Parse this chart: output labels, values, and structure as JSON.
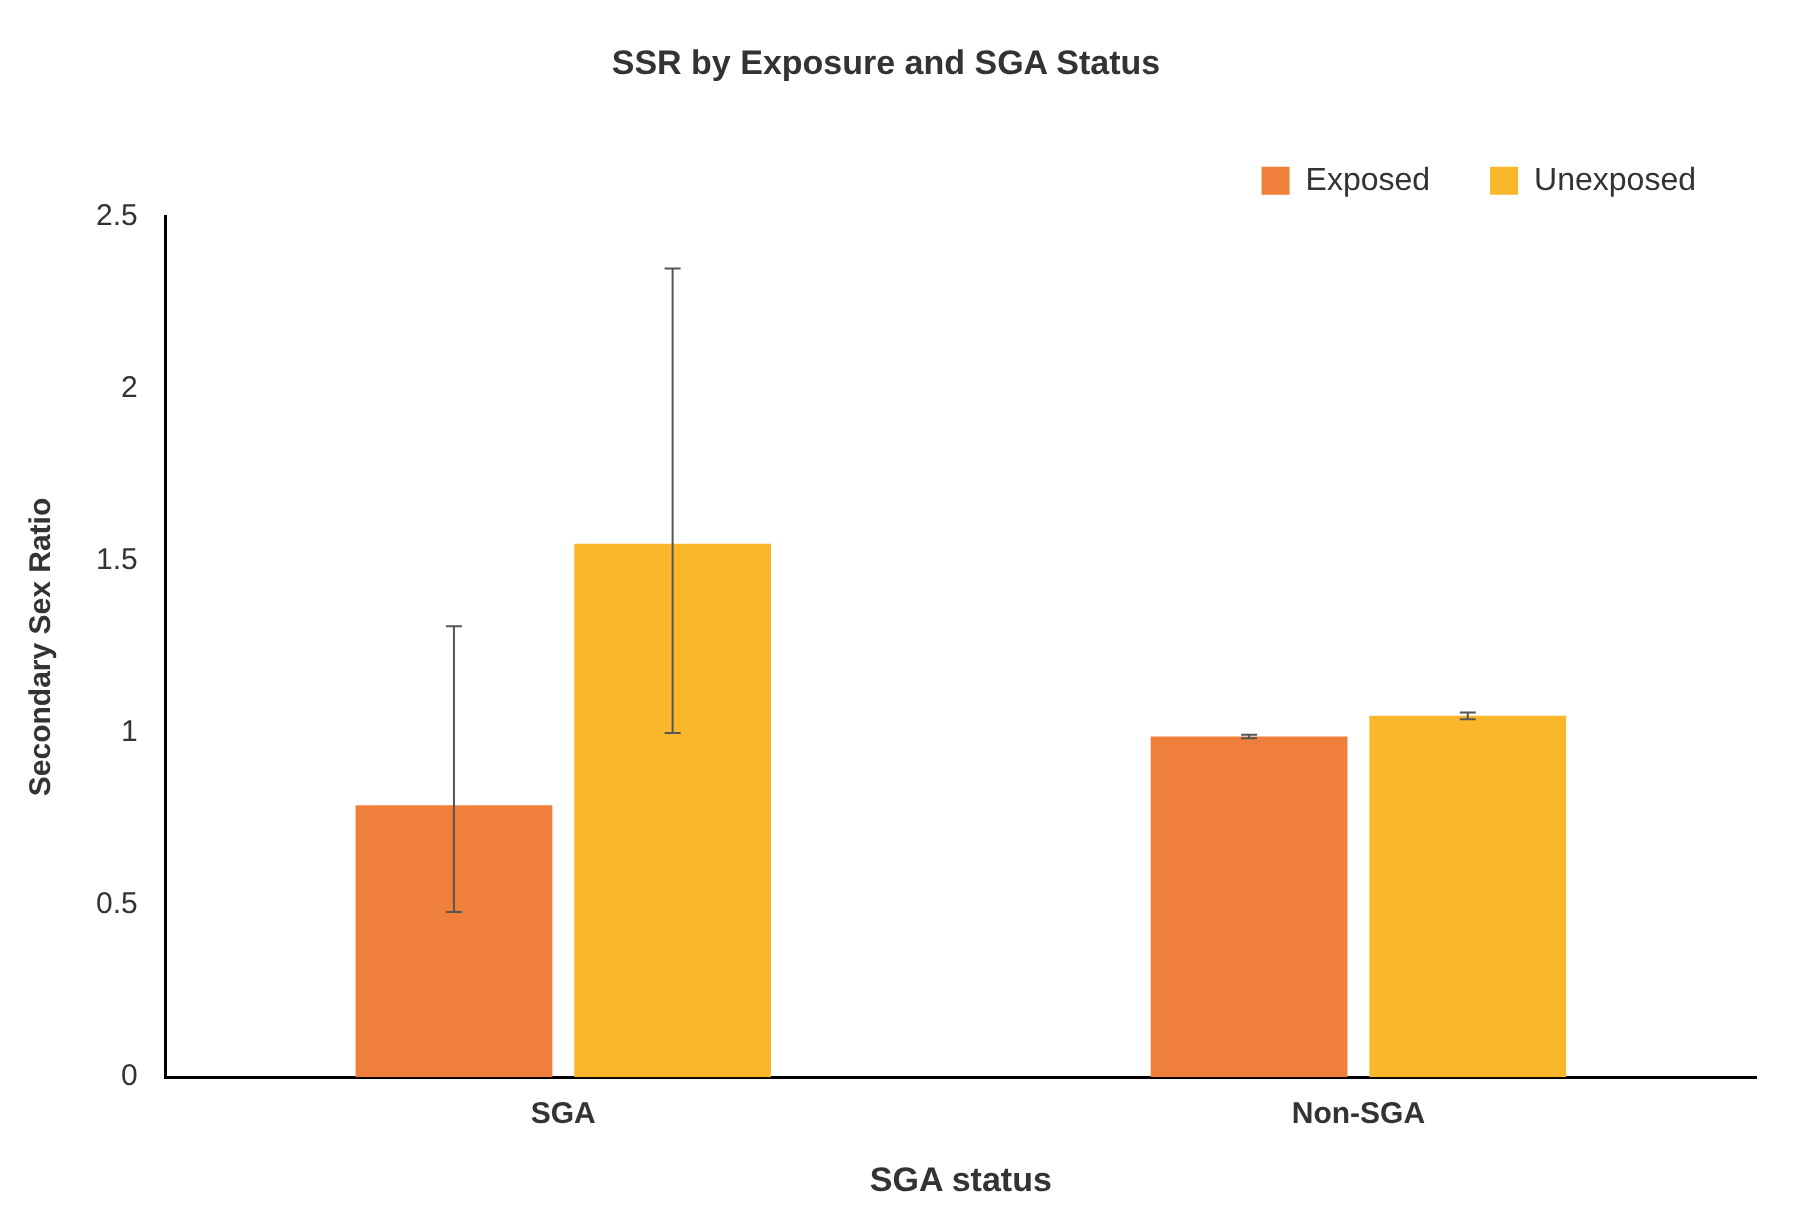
{
  "chart_data": {
    "type": "bar",
    "title": "SSR by Exposure and SGA Status",
    "xlabel": "SGA status",
    "ylabel": "Secondary Sex Ratio",
    "categories": [
      "SGA",
      "Non-SGA"
    ],
    "series": [
      {
        "name": "Exposed",
        "color": "#f07f3c",
        "values": [
          0.79,
          0.99
        ],
        "errors": [
          [
            0.48,
            1.31
          ],
          [
            0.985,
            0.995
          ]
        ]
      },
      {
        "name": "Unexposed",
        "color": "#fbb72b",
        "values": [
          1.55,
          1.05
        ],
        "errors": [
          [
            1.0,
            2.35
          ],
          [
            1.04,
            1.06
          ]
        ]
      }
    ],
    "ylim": [
      0,
      2.5
    ],
    "yticks": [
      0,
      0.5,
      1,
      1.5,
      2,
      2.5
    ],
    "grid": false,
    "legend": "top right"
  }
}
